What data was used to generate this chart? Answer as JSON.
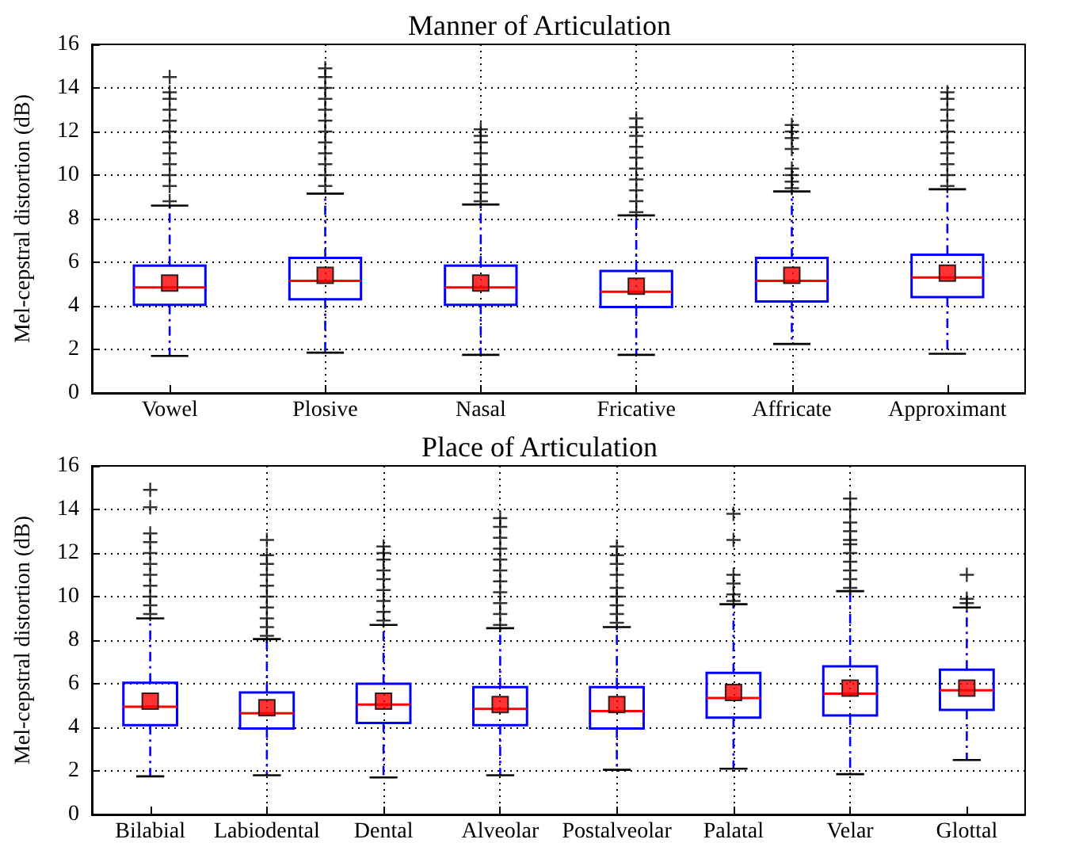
{
  "chart_data": [
    {
      "type": "box",
      "title": "Manner of Articulation",
      "ylabel": "Mel-cepstral distortion (dB)",
      "categories": [
        "Vowel",
        "Plosive",
        "Nasal",
        "Fricative",
        "Affricate",
        "Approximant"
      ],
      "color": "#0000ff",
      "ylim": [
        0,
        16
      ],
      "yticks": [
        0,
        2,
        4,
        6,
        8,
        10,
        12,
        14,
        16
      ],
      "grid": true,
      "legend": false,
      "boxes": [
        {
          "low": 1.7,
          "q1": 4.05,
          "median": 4.85,
          "q3": 5.85,
          "high": 8.6,
          "mean": 5.05,
          "outliers": [
            8.8,
            9.5,
            10,
            10.5,
            11,
            11.5,
            12,
            12.5,
            13,
            13.5,
            13.8,
            14.5
          ]
        },
        {
          "low": 1.85,
          "q1": 4.3,
          "median": 5.15,
          "q3": 6.2,
          "high": 9.15,
          "mean": 5.4,
          "outliers": [
            9.5,
            10,
            10.5,
            11,
            11.5,
            12,
            12.5,
            13,
            13.5,
            14,
            14.5,
            14.9
          ]
        },
        {
          "low": 1.75,
          "q1": 4.05,
          "median": 4.85,
          "q3": 5.85,
          "high": 8.65,
          "mean": 5.05,
          "outliers": [
            8.8,
            9.2,
            9.6,
            10,
            10.5,
            11,
            11.5,
            11.8,
            12.1
          ]
        },
        {
          "low": 1.75,
          "q1": 3.95,
          "median": 4.65,
          "q3": 5.6,
          "high": 8.15,
          "mean": 4.9,
          "outliers": [
            8.3,
            8.8,
            9.3,
            9.8,
            10.3,
            10.8,
            11.3,
            11.8,
            12.2,
            12.6
          ]
        },
        {
          "low": 2.25,
          "q1": 4.2,
          "median": 5.15,
          "q3": 6.2,
          "high": 9.25,
          "mean": 5.4,
          "outliers": [
            9.4,
            9.7,
            10,
            10.3,
            11.2,
            11.7,
            12,
            12.3
          ]
        },
        {
          "low": 1.8,
          "q1": 4.4,
          "median": 5.3,
          "q3": 6.35,
          "high": 9.35,
          "mean": 5.5,
          "outliers": [
            9.5,
            10,
            10.5,
            11,
            11.5,
            12,
            12.5,
            13,
            13.5,
            13.8
          ]
        }
      ]
    },
    {
      "type": "box",
      "title": "Place of Articulation",
      "ylabel": "Mel-cepstral distortion (dB)",
      "categories": [
        "Bilabial",
        "Labiodental",
        "Dental",
        "Alveolar",
        "Postalveolar",
        "Palatal",
        "Velar",
        "Glottal"
      ],
      "color": "#0000ff",
      "ylim": [
        0,
        16
      ],
      "yticks": [
        0,
        2,
        4,
        6,
        8,
        10,
        12,
        14,
        16
      ],
      "grid": true,
      "legend": false,
      "boxes": [
        {
          "low": 1.75,
          "q1": 4.1,
          "median": 4.95,
          "q3": 6.05,
          "high": 9.0,
          "mean": 5.2,
          "outliers": [
            9.2,
            9.6,
            10,
            10.5,
            11,
            11.5,
            12,
            12.5,
            12.9,
            14.1,
            14.9
          ]
        },
        {
          "low": 1.8,
          "q1": 3.95,
          "median": 4.65,
          "q3": 5.6,
          "high": 8.05,
          "mean": 4.9,
          "outliers": [
            8.2,
            8.6,
            9,
            9.5,
            10,
            10.5,
            11,
            11.5,
            11.9,
            12.6
          ]
        },
        {
          "low": 1.7,
          "q1": 4.2,
          "median": 5.05,
          "q3": 6.0,
          "high": 8.7,
          "mean": 5.2,
          "outliers": [
            8.9,
            9.3,
            9.8,
            10.3,
            10.8,
            11.2,
            11.7,
            12,
            12.3
          ]
        },
        {
          "low": 1.8,
          "q1": 4.1,
          "median": 4.85,
          "q3": 5.85,
          "high": 8.55,
          "mean": 5.05,
          "outliers": [
            8.7,
            9.2,
            9.7,
            10.2,
            10.7,
            11.2,
            11.7,
            12.2,
            12.7,
            13.2,
            13.6
          ]
        },
        {
          "low": 2.05,
          "q1": 3.95,
          "median": 4.75,
          "q3": 5.85,
          "high": 8.6,
          "mean": 5.05,
          "outliers": [
            8.8,
            9.2,
            9.6,
            10,
            10.4,
            11,
            11.5,
            11.9,
            12.3
          ]
        },
        {
          "low": 2.1,
          "q1": 4.45,
          "median": 5.35,
          "q3": 6.5,
          "high": 9.65,
          "mean": 5.6,
          "outliers": [
            9.8,
            10.1,
            10.6,
            11,
            12.6,
            13.8
          ]
        },
        {
          "low": 1.85,
          "q1": 4.55,
          "median": 5.55,
          "q3": 6.8,
          "high": 10.25,
          "mean": 5.8,
          "outliers": [
            10.4,
            10.8,
            11.2,
            11.6,
            12,
            12.4,
            12.6,
            13,
            13.4,
            14,
            14.5
          ]
        },
        {
          "low": 2.5,
          "q1": 4.8,
          "median": 5.7,
          "q3": 6.65,
          "high": 9.5,
          "mean": 5.8,
          "outliers": [
            9.7,
            9.9,
            11
          ]
        }
      ]
    }
  ]
}
